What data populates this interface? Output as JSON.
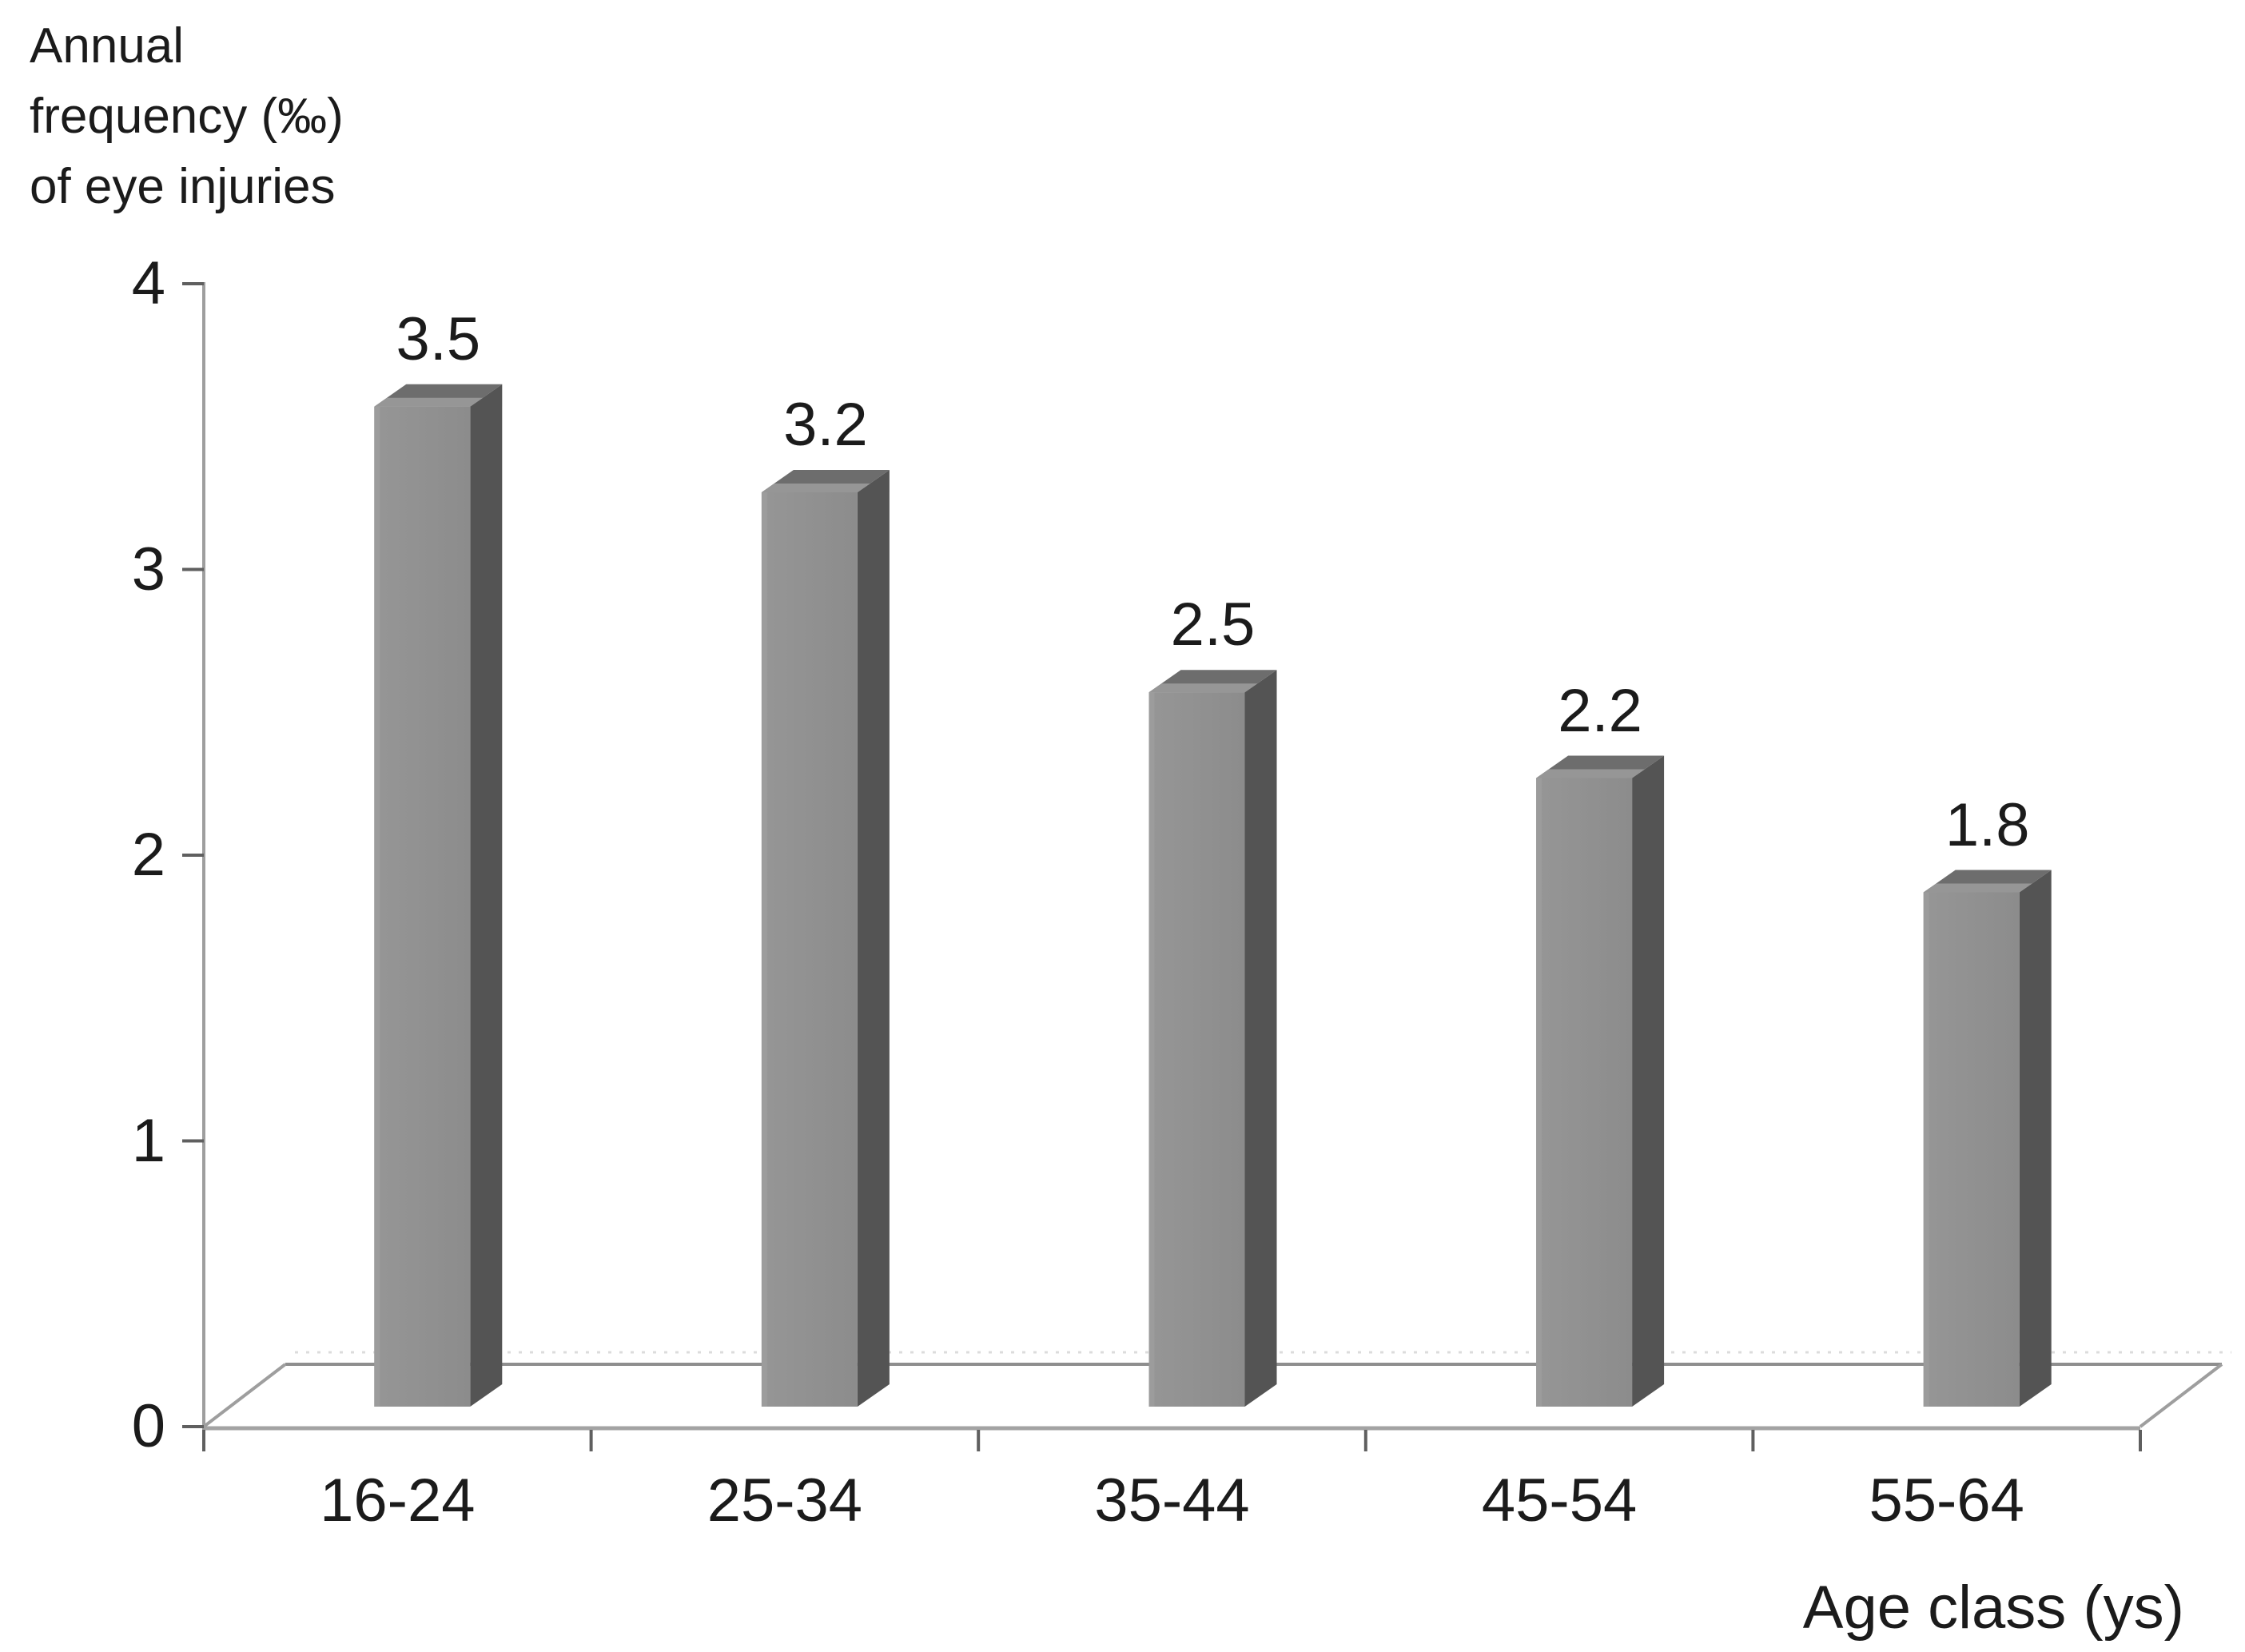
{
  "figure": {
    "background": "#ffffff",
    "text_color": "#1b1b1b"
  },
  "chart_data": {
    "type": "bar",
    "style": "3d-column",
    "title": "",
    "ylabel": "Annual\nfrequency (‰)\nof eye injuries",
    "xlabel": "Age class (ys)",
    "categories": [
      "16-24",
      "25-34",
      "35-44",
      "45-54",
      "55-64"
    ],
    "values": [
      3.5,
      3.2,
      2.5,
      2.2,
      1.8
    ],
    "value_labels": [
      "3.5",
      "3.2",
      "2.5",
      "2.2",
      "1.8"
    ],
    "ytick_labels": [
      "4",
      "3",
      "2",
      "1",
      "0"
    ],
    "yticks": [
      4,
      3,
      2,
      1,
      0
    ],
    "ylim": [
      0,
      4
    ],
    "grid": false,
    "legend": null,
    "colors": {
      "bar_front": "#8c8c8c",
      "bar_front_light": "#969696",
      "bar_side": "#545454",
      "bar_top": "#6d6d6d",
      "bar_bevel": "#9e9e9e",
      "axis_line": "#9e9e9e",
      "floor_front_line": "#a3a3a3",
      "floor_back_line": "#8e8e8e",
      "tick": "#5f5f5f",
      "ghost_dotted_line": "#dcdcdc"
    }
  }
}
